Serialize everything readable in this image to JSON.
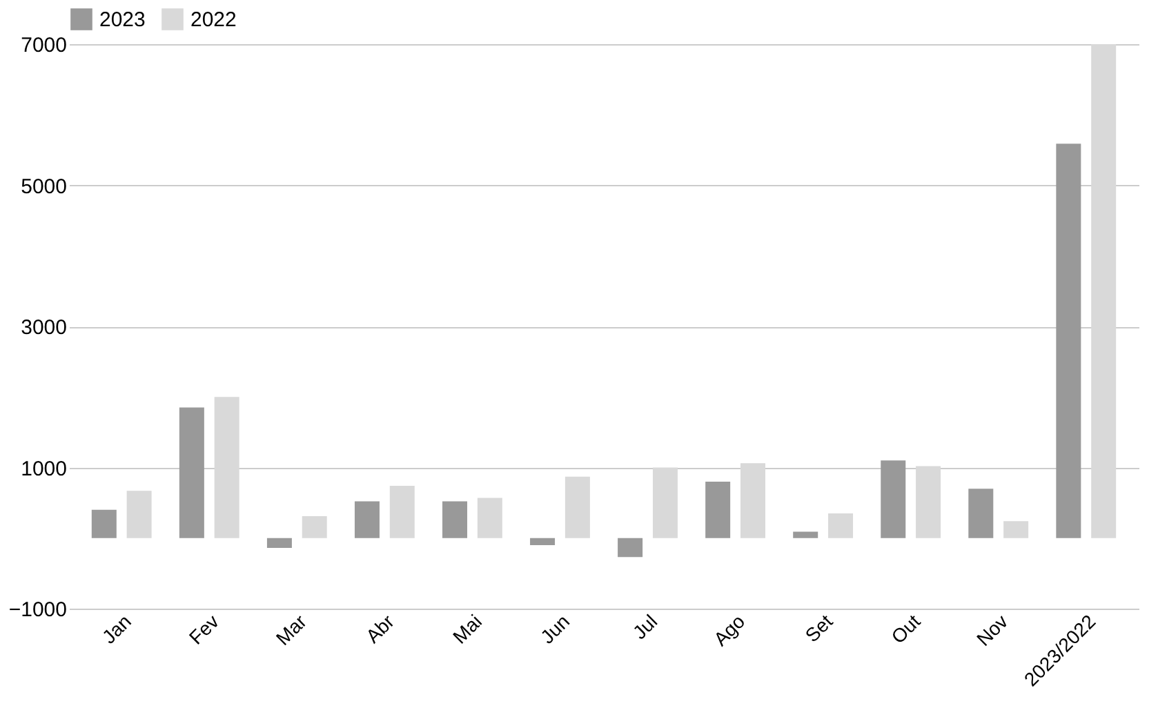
{
  "chart_data": {
    "type": "bar",
    "categories": [
      "Jan",
      "Fev",
      "Mar",
      "Abr",
      "Mai",
      "Jun",
      "Jul",
      "Ago",
      "Set",
      "Out",
      "Nov",
      "2023/2022"
    ],
    "series": [
      {
        "name": "2023",
        "color": "#999999",
        "values": [
          400,
          1850,
          -140,
          520,
          520,
          -100,
          -270,
          800,
          90,
          1100,
          700,
          5590
        ]
      },
      {
        "name": "2022",
        "color": "#d9d9d9",
        "values": [
          670,
          2000,
          310,
          740,
          570,
          870,
          1000,
          1060,
          350,
          1020,
          240,
          7000
        ]
      }
    ],
    "ylim": [
      -1000,
      7000
    ],
    "yticks": [
      -1000,
      1000,
      3000,
      5000,
      7000
    ],
    "grid": "y",
    "legend": "top"
  }
}
